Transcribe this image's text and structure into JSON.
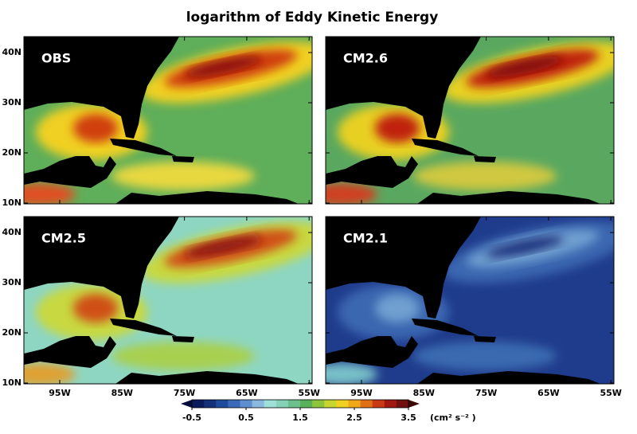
{
  "title": "logarithm of Eddy Kinetic Energy",
  "panels": [
    {
      "label": "OBS"
    },
    {
      "label": "CM2.6"
    },
    {
      "label": "CM2.5"
    },
    {
      "label": "CM2.1"
    }
  ],
  "lat_labels": [
    "10N",
    "20N",
    "30N",
    "40N"
  ],
  "lon_labels": [
    "95W",
    "85W",
    "75W",
    "65W",
    "55W"
  ],
  "colorbar": {
    "lim": [
      -0.5,
      3.5
    ],
    "ticks": [
      -0.5,
      0.5,
      1.5,
      2.5,
      3.5
    ],
    "unit": "(cm² s⁻² )"
  }
}
